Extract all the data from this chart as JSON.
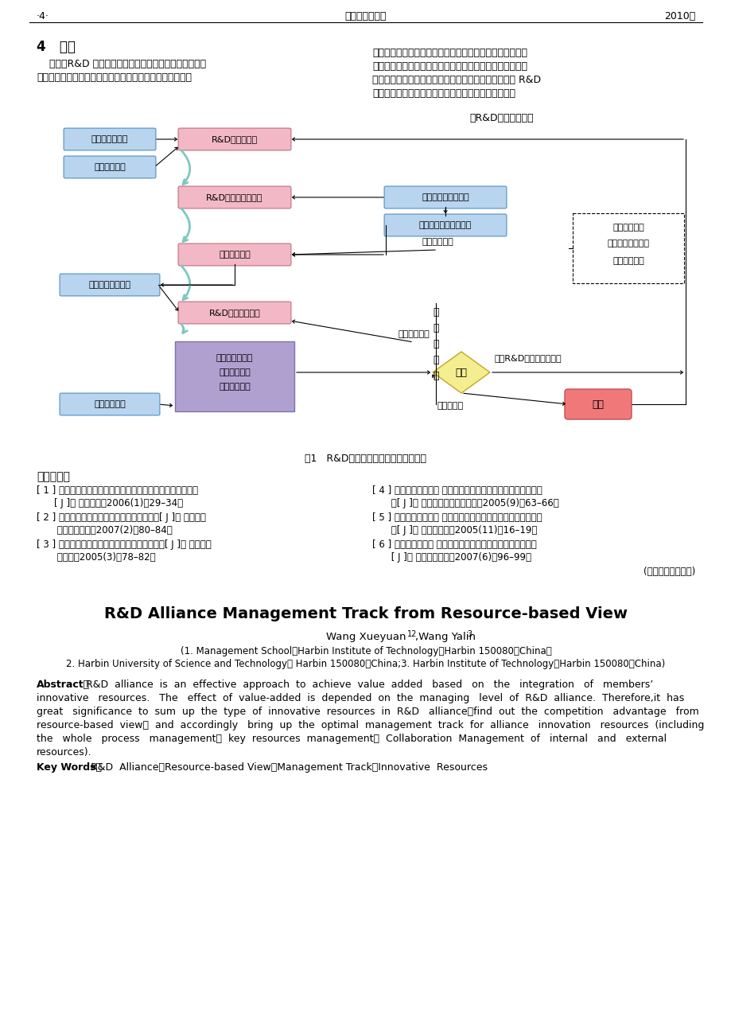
{
  "page_header_left": "·4·",
  "page_header_center": "科技进步与对策",
  "page_header_right": "2010年",
  "section_title": "4   结论",
  "body_left_1": "    总之，R&D 联盟是在有效整合成员创新资源基础上，通",
  "body_left_2": "过各方的合作努力，实现创新资源有效增値的开放性系统。",
  "body_right_1": "为了提高联盟的创新效率、实现联盟的可持续发展，应当从",
  "body_right_2": "资源观出发，在联盟管理中坚持创新资源全过程管理、优势",
  "body_right_3": "资源重点管理，内外创新资源协同管理的模式，以促进 R&D",
  "body_right_4": "联盟各方资源的有效整合与创新资源利用效率的提高。",
  "new_rd_label": "新R&D联盟研发合作",
  "box_lianmeng_mubiao": "联盟目标的确定",
  "box_chuangxin_ziyuan": "创新资源分析",
  "box_rd_zhunbei": "R&D联盟的准备",
  "box_rd_huoban": "R&D联盟伙伴的选择",
  "box_kaohe": "考核新成员创新资源",
  "box_shibie": "识别联盟优势创新资源",
  "box_queding_zhongdian": "确定管理重点",
  "box_tiaozhen": "调整管理方案",
  "box_queding_zhongdian_obj": "确定重点管理对象",
  "box_rd_guocheng": "R&D联盟过程管理",
  "box_gaishan": "改善管理过程",
  "box_wc_mubiao_v": [
    "未",
    "完",
    "成",
    "目",
    "标"
  ],
  "box_chuangzao": "创造期望値交集",
  "box_xitong": "系统熵的控制",
  "box_xietong": "协同联盟资源",
  "box_pinjia": "评价",
  "box_fuhe": "符合R&D联盟的目标要求",
  "box_caiqv": "采取辅助措施",
  "box_wc_mubiao_h": "未完成目标",
  "box_jiesan": "解散",
  "box_dashed_1": "完成项目任务",
  "box_dashed_2": "产生新技术与产品",
  "box_dashed_3": "形成技术标准",
  "diagram_caption": "图1   R&D联盟创新资源的优化管理模型",
  "ref_header": "参考文献：",
  "ref1a": "[ 1 ] 张堅．企业技术联盟绩效评价体系的比较和发展趋势分析",
  "ref1b": "[ J ]． 科研管理，2006(1)：29–34．",
  "ref2a": "[ 2 ] 胡璀辉．企业技术创新联盟持续发展研究[ J ]． 科学学与",
  "ref2b": " 科学技术管理，2007(2)：80–84．",
  "ref3a": "[ 3 ] 陈健，何国祥．区域创新资源配置能力研究[ J ]． 自然辩证",
  "ref3b": " 法研究，2005(3)：78–82．",
  "ref4a": "[ 4 ] 陈琾璃，池仁勇． 产业集群发展过程中创新资源的聚集和优",
  "ref4b": " 化[ J ]． 科学学与科学技术管理，2005(9)：63–66．",
  "ref5a": "[ 5 ] 向希富，木佩民． 基于资源基础理论的产业集群竞争优势分",
  "ref5b": " 析[ J ]． 经济与管理，2005(11)：16–19．",
  "ref6a": "[ 6 ] 尚涛，樊彡强． 制度变迁理论视角下的技术标准联盟分析",
  "ref6b": " [ J ]． 中国科技论坛，2007(6)：96–99．",
  "resp_editor": "(责任编辑：胡促健)",
  "eng_title": "R&D Alliance Management Track from Resource-based View",
  "eng_author": "Wang Xueyuan",
  "eng_author_super": "12",
  "eng_author2": ",Wang Yalin",
  "eng_author2_super": "3",
  "eng_affil1": "(1. Management School，Harbin Institute of Technology，Harbin 150080，China；",
  "eng_affil2": "2. Harbin University of Science and Technology， Harbin 150080，China;3. Harbin Institute of Technology，Harbin 150080，China)",
  "abs_bold": "Abstract：",
  "abs_line1": "R&D  alliance  is  an  effective  approach  to  achieve  value  added   based   on   the   integration   of   members’",
  "abs_line2": "innovative   resources.   The   effect  of  value-added  is  depended  on  the  managing   level  of  R&D  alliance.  Therefore,it  has",
  "abs_line3": "great   significance  to  sum  up  the  type  of  innovative  resources  in  R&D   alliance，find  out  the  competition   advantage   from",
  "abs_line4": "resource-based  view，  and  accordingly   bring  up  the  optimal  management  track  for  alliance   innovation   resources  (including",
  "abs_line5": "the   whole   process   management；  key  resources  management；  Collaboration  Management  of   internal   and   external",
  "abs_line6": "resources).",
  "kw_bold": "Key Words：",
  "kw_text": "R&D  Alliance；Resource-based View；Management Track；Innovative  Resources",
  "PINK": "#F2B8C6",
  "LIGHTBLUE": "#B8D4EE",
  "PURPLE": "#B0A0D0",
  "YELLOW": "#F5EE90",
  "RED": "#F07878",
  "TEAL": "#7EC8C0",
  "WHITE": "#FFFFFF",
  "BLACK": "#000000"
}
